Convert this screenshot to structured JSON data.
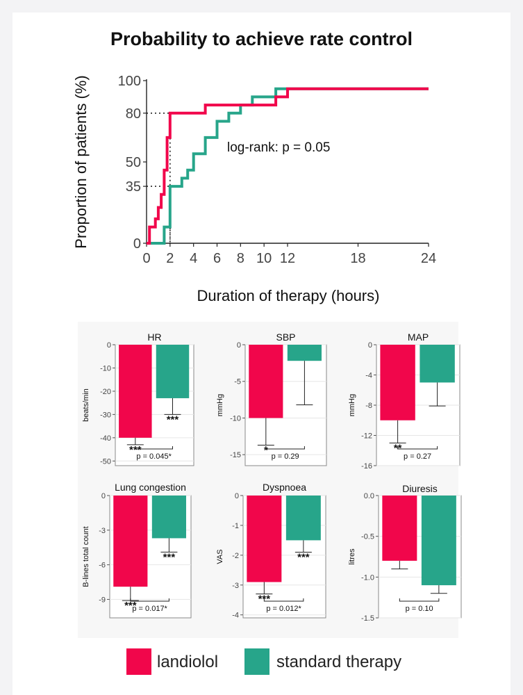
{
  "title": "Probability to achieve rate control",
  "colors": {
    "landiolol": "#f1064b",
    "standard": "#27a58a"
  },
  "chart_data": [
    {
      "type": "line",
      "subtype": "kaplan-meier-step",
      "title": "Probability to achieve rate control",
      "xlabel": "Duration of therapy (hours)",
      "ylabel": "Proportion of patients (%)",
      "xlim": [
        0,
        24
      ],
      "ylim": [
        0,
        100
      ],
      "xticks": [
        "0",
        "2",
        "4",
        "6",
        "8",
        "10",
        "12",
        "18",
        "24"
      ],
      "yticks": [
        "0",
        "35",
        "50",
        "80",
        "100"
      ],
      "annotation": "log-rank: p = 0.05",
      "reference_lines": [
        {
          "x": 2,
          "y": 80
        },
        {
          "x": 2,
          "y": 35
        }
      ],
      "series": [
        {
          "name": "landiolol",
          "x": [
            0,
            0.25,
            0.25,
            0.75,
            0.75,
            1,
            1,
            1.25,
            1.25,
            1.5,
            1.5,
            1.75,
            1.75,
            2,
            2,
            5,
            5,
            11,
            11,
            12,
            12,
            24
          ],
          "y": [
            0,
            0,
            10,
            10,
            15,
            15,
            22,
            22,
            30,
            30,
            45,
            45,
            65,
            65,
            80,
            80,
            85,
            85,
            90,
            90,
            95,
            95
          ]
        },
        {
          "name": "standard therapy",
          "x": [
            0,
            1.5,
            1.5,
            2,
            2,
            3,
            3,
            3.5,
            3.5,
            4,
            4,
            5,
            5,
            6,
            6,
            7,
            7,
            8,
            8,
            9,
            9,
            11,
            11,
            24
          ],
          "y": [
            0,
            0,
            10,
            10,
            35,
            35,
            40,
            40,
            45,
            45,
            55,
            55,
            65,
            65,
            75,
            75,
            80,
            80,
            85,
            85,
            90,
            90,
            95,
            95
          ]
        }
      ]
    },
    {
      "type": "bar",
      "title": "HR",
      "ylabel": "beats/min",
      "categories": [
        "landiolol",
        "standard therapy"
      ],
      "values": [
        -40,
        -23
      ],
      "error_bars": [
        -43,
        -30
      ],
      "significance": [
        "***",
        "***"
      ],
      "p_value": "p = 0.045*",
      "ylim": [
        -52,
        0
      ],
      "yticks": [
        "0",
        "-10",
        "-20",
        "-30",
        "-40",
        "-50"
      ]
    },
    {
      "type": "bar",
      "title": "SBP",
      "ylabel": "mmHg",
      "categories": [
        "landiolol",
        "standard therapy"
      ],
      "values": [
        -10,
        -2.2
      ],
      "error_bars": [
        -13.7,
        -8.2
      ],
      "significance": [
        "*",
        ""
      ],
      "p_value": "p = 0.29",
      "ylim": [
        -16.5,
        0
      ],
      "yticks": [
        "0",
        "-5",
        "-10",
        "-15"
      ]
    },
    {
      "type": "bar",
      "title": "MAP",
      "ylabel": "mmHg",
      "categories": [
        "landiolol",
        "standard therapy"
      ],
      "values": [
        -10,
        -5
      ],
      "error_bars": [
        -13,
        -8.1
      ],
      "significance": [
        "**",
        ""
      ],
      "p_value": "p = 0.27",
      "ylim": [
        -16,
        0
      ],
      "yticks": [
        "0",
        "-4",
        "-8",
        "-12",
        "-16"
      ]
    },
    {
      "type": "bar",
      "title": "Lung congestion",
      "ylabel": "B-lines total count",
      "categories": [
        "landiolol",
        "standard therapy"
      ],
      "values": [
        -7.9,
        -3.7
      ],
      "error_bars": [
        -9.1,
        -4.9
      ],
      "significance": [
        "***",
        "***"
      ],
      "p_value": "p = 0.017*",
      "ylim": [
        -10.6,
        0
      ],
      "yticks": [
        "0",
        "-3",
        "-6",
        "-9"
      ]
    },
    {
      "type": "bar",
      "title": "Dyspnoea",
      "ylabel": "VAS",
      "categories": [
        "landiolol",
        "standard therapy"
      ],
      "values": [
        -2.9,
        -1.5
      ],
      "error_bars": [
        -3.3,
        -1.9
      ],
      "significance": [
        "***",
        "***"
      ],
      "p_value": "p = 0.012*",
      "ylim": [
        -4.1,
        0
      ],
      "yticks": [
        "0",
        "-1",
        "-2",
        "-3",
        "-4"
      ]
    },
    {
      "type": "bar",
      "title": "Diuresis",
      "ylabel": "litres",
      "categories": [
        "landiolol",
        "standard therapy"
      ],
      "values": [
        -0.8,
        -1.1
      ],
      "error_bars": [
        -0.9,
        -1.2
      ],
      "significance": [
        "",
        ""
      ],
      "p_value": "p = 0.10",
      "ylim": [
        -1.5,
        0
      ],
      "yticks": [
        "0.0",
        "-0.5",
        "-1.0",
        "-1.5"
      ]
    }
  ],
  "legend": [
    {
      "label": "landiolol",
      "color": "#f1064b"
    },
    {
      "label": "standard therapy",
      "color": "#27a58a"
    }
  ]
}
